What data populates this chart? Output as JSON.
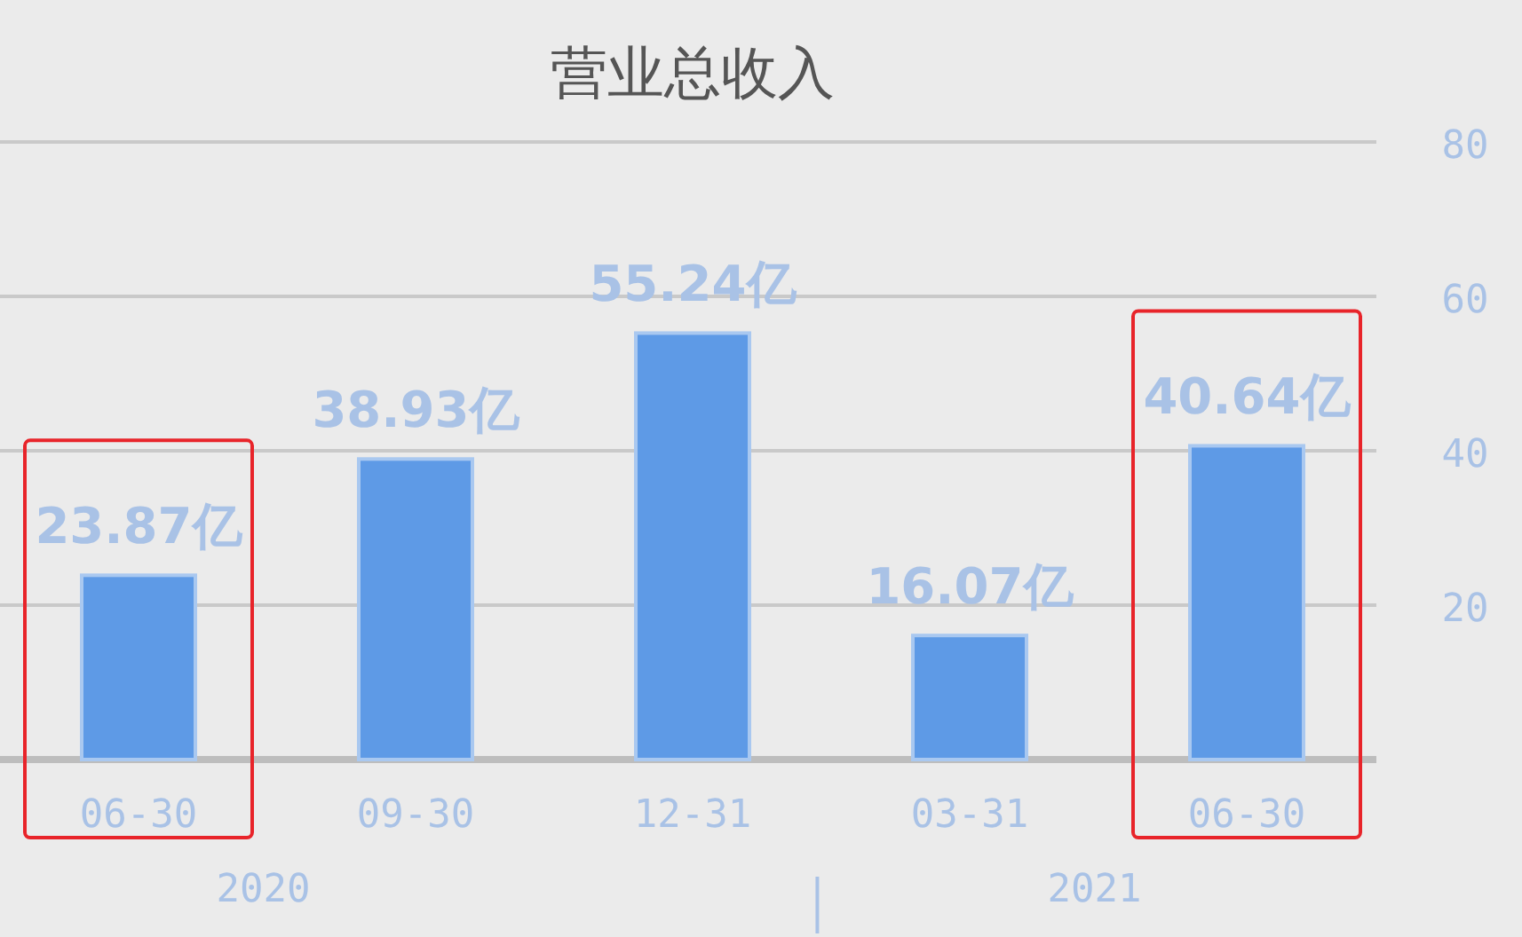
{
  "chart_data": {
    "type": "bar",
    "title": "营业总收入",
    "categories": [
      "06-30",
      "09-30",
      "12-31",
      "03-31",
      "06-30"
    ],
    "values": [
      23.87,
      38.93,
      55.24,
      16.07,
      40.64
    ],
    "value_labels": [
      "23.87亿",
      "38.93亿",
      "55.24亿",
      "16.07亿",
      "40.64亿"
    ],
    "color": "#5e9ae6",
    "ylim": [
      0,
      80
    ],
    "yticks": [
      20,
      40,
      60,
      80
    ],
    "grid": "y",
    "annotations": [
      "2020",
      "2021"
    ]
  }
}
